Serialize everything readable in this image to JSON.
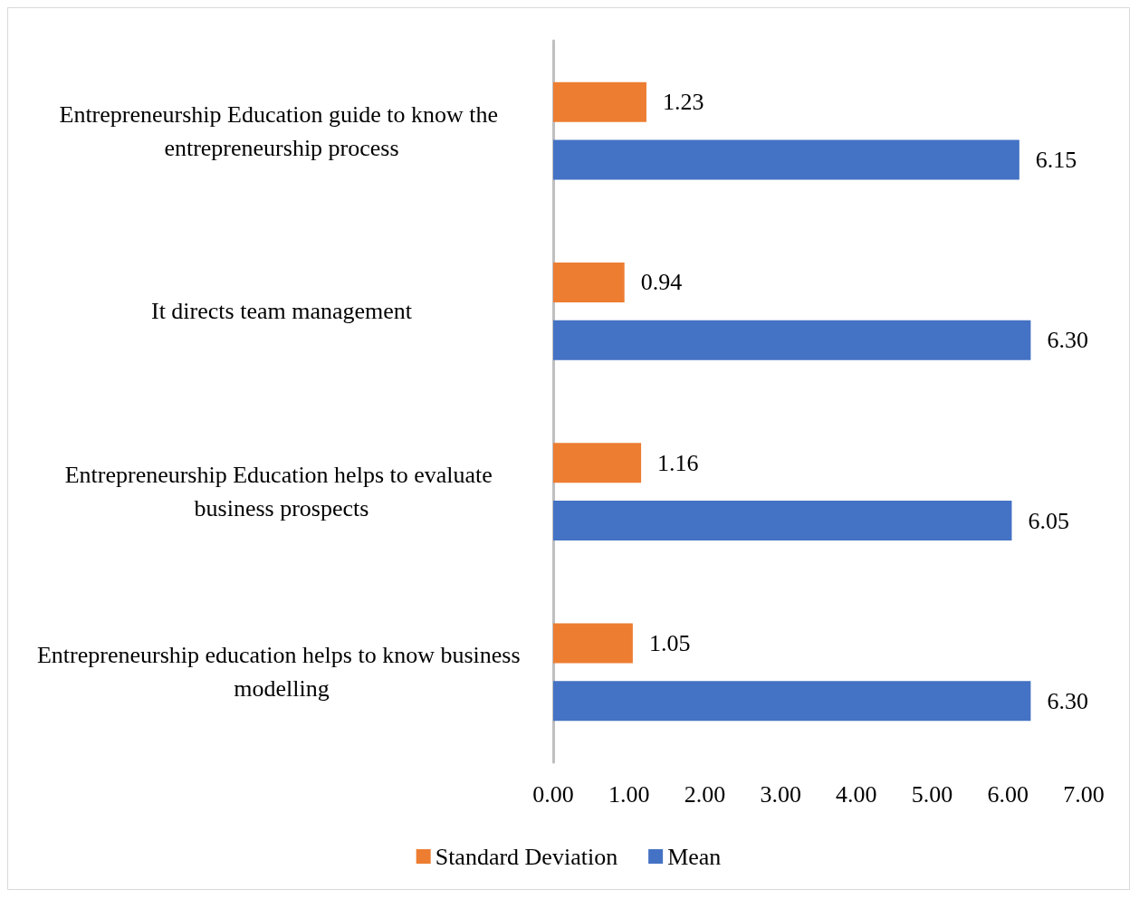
{
  "chart_data": {
    "type": "bar",
    "orientation": "horizontal",
    "categories": [
      "Entrepreneurship Education guide to know the entrepreneurship process",
      "It directs team management",
      "Entrepreneurship Education helps to evaluate business prospects",
      "Entrepreneurship education helps to know business modelling"
    ],
    "series": [
      {
        "name": "Standard Deviation",
        "color": "#ed7d31",
        "values": [
          1.23,
          0.94,
          1.16,
          1.05
        ],
        "value_labels": [
          "1.23",
          "0.94",
          "1.16",
          "1.05"
        ]
      },
      {
        "name": "Mean",
        "color": "#4472c4",
        "values": [
          6.15,
          6.3,
          6.05,
          6.3
        ],
        "value_labels": [
          "6.15",
          "6.30",
          "6.05",
          "6.30"
        ]
      }
    ],
    "xlim": [
      0,
      7
    ],
    "xticks": [
      {
        "value": 0,
        "label": "0.00"
      },
      {
        "value": 1,
        "label": "1.00"
      },
      {
        "value": 2,
        "label": "2.00"
      },
      {
        "value": 3,
        "label": "3.00"
      },
      {
        "value": 4,
        "label": "4.00"
      },
      {
        "value": 5,
        "label": "5.00"
      },
      {
        "value": 6,
        "label": "6.00"
      },
      {
        "value": 7,
        "label": "7.00"
      }
    ],
    "grid": false,
    "legend": "bottom"
  }
}
